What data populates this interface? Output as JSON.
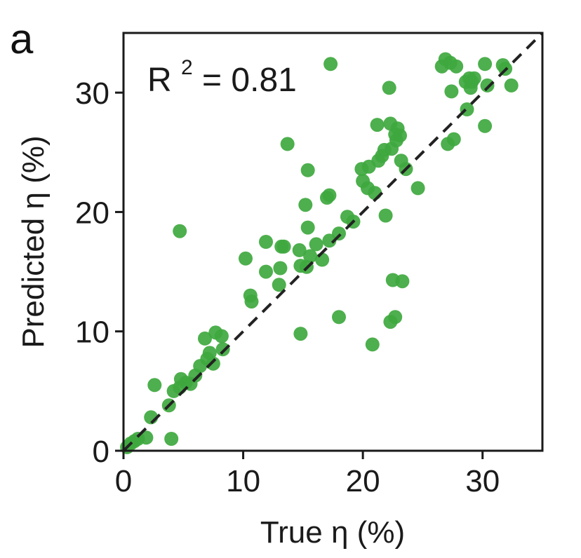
{
  "chart_data": {
    "type": "scatter",
    "panel_label": "a",
    "title": "",
    "xlabel": "True η (%)",
    "ylabel": "Predicted η (%)",
    "xlim": [
      0,
      35
    ],
    "ylim": [
      0,
      35
    ],
    "xticks": [
      0,
      10,
      20,
      30
    ],
    "yticks": [
      0,
      10,
      20,
      30
    ],
    "grid": false,
    "annotation": {
      "base": "R",
      "sup": "2",
      "rest": " = 0.81"
    },
    "reference_line": {
      "style": "dashed",
      "color": "#222222",
      "from": [
        0,
        0
      ],
      "to": [
        35,
        35
      ]
    },
    "point_color": "#3ea83e",
    "series": [
      {
        "points": [
          [
            0.3,
            0.3
          ],
          [
            0.6,
            0.6
          ],
          [
            0.9,
            0.8
          ],
          [
            1.2,
            1.0
          ],
          [
            1.9,
            1.1
          ],
          [
            4.0,
            1.0
          ],
          [
            2.3,
            2.8
          ],
          [
            3.8,
            3.8
          ],
          [
            4.2,
            5.0
          ],
          [
            4.7,
            5.3
          ],
          [
            4.8,
            6.0
          ],
          [
            5.2,
            5.7
          ],
          [
            5.6,
            5.6
          ],
          [
            2.6,
            5.5
          ],
          [
            6.0,
            6.3
          ],
          [
            6.4,
            7.1
          ],
          [
            7.0,
            7.7
          ],
          [
            7.2,
            8.2
          ],
          [
            7.5,
            7.3
          ],
          [
            6.8,
            9.4
          ],
          [
            7.7,
            9.9
          ],
          [
            8.2,
            9.6
          ],
          [
            8.3,
            8.5
          ],
          [
            4.7,
            18.4
          ],
          [
            10.2,
            16.1
          ],
          [
            10.6,
            13.0
          ],
          [
            10.7,
            12.5
          ],
          [
            11.9,
            17.5
          ],
          [
            11.9,
            15.0
          ],
          [
            13.0,
            13.9
          ],
          [
            13.1,
            15.3
          ],
          [
            13.2,
            17.1
          ],
          [
            13.4,
            17.1
          ],
          [
            14.7,
            16.8
          ],
          [
            14.8,
            15.5
          ],
          [
            15.3,
            15.4
          ],
          [
            15.6,
            16.3
          ],
          [
            15.4,
            18.7
          ],
          [
            15.2,
            20.6
          ],
          [
            13.7,
            25.7
          ],
          [
            15.4,
            23.5
          ],
          [
            14.8,
            9.8
          ],
          [
            16.1,
            17.3
          ],
          [
            16.6,
            16.0
          ],
          [
            17.0,
            21.2
          ],
          [
            17.2,
            21.4
          ],
          [
            17.2,
            17.6
          ],
          [
            17.3,
            32.4
          ],
          [
            18.0,
            11.2
          ],
          [
            18.0,
            18.2
          ],
          [
            18.7,
            19.6
          ],
          [
            19.2,
            19.2
          ],
          [
            20.0,
            22.6
          ],
          [
            19.9,
            23.6
          ],
          [
            20.5,
            23.8
          ],
          [
            20.4,
            22.0
          ],
          [
            21.0,
            21.6
          ],
          [
            21.2,
            27.3
          ],
          [
            21.3,
            24.3
          ],
          [
            21.6,
            24.7
          ],
          [
            21.8,
            25.2
          ],
          [
            21.9,
            19.7
          ],
          [
            22.2,
            30.4
          ],
          [
            22.3,
            27.4
          ],
          [
            22.4,
            25.3
          ],
          [
            22.5,
            14.3
          ],
          [
            22.7,
            26.5
          ],
          [
            22.8,
            26.0
          ],
          [
            22.9,
            27.0
          ],
          [
            23.1,
            26.4
          ],
          [
            23.2,
            24.3
          ],
          [
            23.3,
            14.2
          ],
          [
            22.3,
            10.8
          ],
          [
            22.7,
            11.2
          ],
          [
            20.8,
            8.9
          ],
          [
            23.6,
            23.6
          ],
          [
            24.6,
            22.0
          ],
          [
            26.6,
            32.2
          ],
          [
            26.9,
            32.8
          ],
          [
            27.1,
            25.7
          ],
          [
            27.3,
            32.5
          ],
          [
            27.4,
            30.1
          ],
          [
            27.6,
            26.1
          ],
          [
            27.8,
            32.2
          ],
          [
            28.6,
            30.9
          ],
          [
            28.7,
            28.6
          ],
          [
            28.9,
            31.2
          ],
          [
            29.0,
            30.4
          ],
          [
            29.1,
            30.9
          ],
          [
            29.3,
            31.2
          ],
          [
            30.2,
            32.4
          ],
          [
            30.2,
            27.2
          ],
          [
            30.4,
            30.6
          ],
          [
            31.7,
            32.3
          ],
          [
            31.9,
            32.0
          ],
          [
            32.4,
            30.6
          ]
        ]
      }
    ]
  }
}
